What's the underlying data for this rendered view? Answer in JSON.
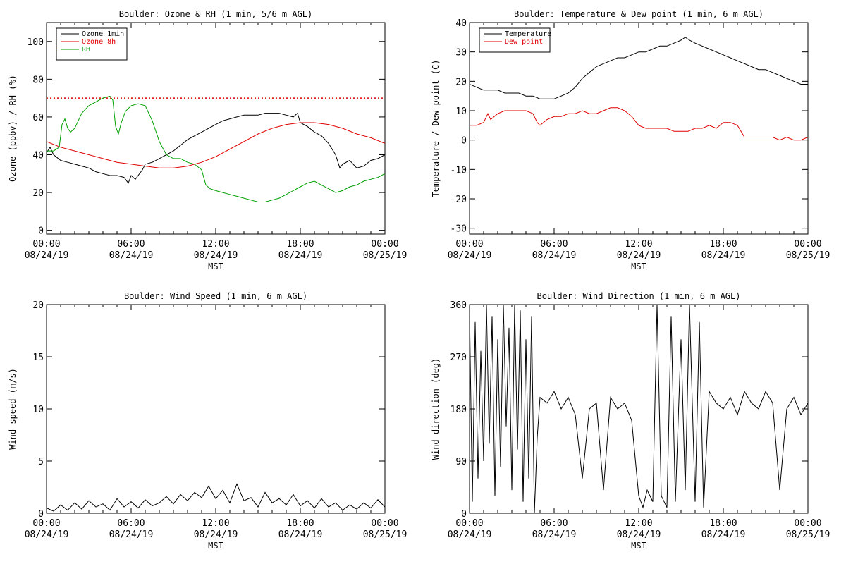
{
  "chart_data": [
    {
      "type": "line",
      "title": "Boulder: Ozone & RH (1 min, 5/6 m AGL)",
      "xlabel": "MST",
      "ylabel": "Ozone (ppbv) / RH (%)",
      "xlim": [
        0,
        24
      ],
      "ylim": [
        -2,
        110
      ],
      "yticks": [
        0,
        20,
        40,
        60,
        80,
        100
      ],
      "xticks": [
        {
          "time": "00:00",
          "date": "08/24/19"
        },
        {
          "time": "06:00",
          "date": "08/24/19"
        },
        {
          "time": "12:00",
          "date": "08/24/19"
        },
        {
          "time": "18:00",
          "date": "08/24/19"
        },
        {
          "time": "00:00",
          "date": "08/25/19"
        }
      ],
      "legend_position": "top-left",
      "reference_line": {
        "y": 70,
        "color": "#e00000",
        "style": "dotted"
      },
      "series": [
        {
          "name": "Ozone 1min",
          "color": "#000000",
          "x": [
            0,
            0.25,
            0.5,
            1,
            1.5,
            2,
            2.5,
            3,
            3.5,
            4,
            4.5,
            5,
            5.5,
            5.8,
            6,
            6.3,
            6.8,
            7,
            7.5,
            8,
            8.5,
            9,
            9.5,
            10,
            10.5,
            11,
            11.5,
            12,
            12.5,
            13,
            13.5,
            14,
            14.5,
            15,
            15.5,
            16,
            16.5,
            17,
            17.5,
            17.8,
            18,
            18.5,
            19,
            19.5,
            20,
            20.5,
            20.8,
            21,
            21.5,
            22,
            22.5,
            23,
            23.5,
            24
          ],
          "y": [
            41,
            44,
            40,
            37,
            36,
            35,
            34,
            33,
            31,
            30,
            29,
            29,
            28,
            25,
            29,
            27,
            32,
            35,
            36,
            38,
            40,
            42,
            45,
            48,
            50,
            52,
            54,
            56,
            58,
            59,
            60,
            61,
            61,
            61,
            62,
            62,
            62,
            61,
            60,
            62,
            57,
            55,
            52,
            50,
            46,
            40,
            33,
            35,
            37,
            33,
            34,
            37,
            38,
            40
          ]
        },
        {
          "name": "Ozone 8h",
          "color": "#e00000",
          "x": [
            0,
            1,
            2,
            3,
            4,
            5,
            6,
            7,
            8,
            9,
            10,
            11,
            12,
            13,
            14,
            15,
            16,
            17,
            18,
            19,
            20,
            21,
            22,
            23,
            24
          ],
          "y": [
            47,
            44,
            42,
            40,
            38,
            36,
            35,
            34,
            33,
            33,
            34,
            36,
            39,
            43,
            47,
            51,
            54,
            56,
            57,
            57,
            56,
            54,
            51,
            49,
            46
          ]
        },
        {
          "name": "RH",
          "color": "#00a000",
          "x": [
            0,
            0.5,
            0.9,
            1.1,
            1.3,
            1.5,
            1.7,
            2,
            2.5,
            3,
            3.5,
            4,
            4.5,
            4.7,
            4.9,
            5.1,
            5.3,
            5.6,
            6,
            6.5,
            7,
            7.5,
            8,
            8.5,
            9,
            9.5,
            10,
            10.5,
            11,
            11.3,
            11.6,
            12,
            12.5,
            13,
            13.5,
            14,
            14.5,
            15,
            15.5,
            16,
            16.5,
            17,
            17.5,
            18,
            18.5,
            19,
            19.5,
            20,
            20.5,
            21,
            21.5,
            22,
            22.5,
            23,
            23.5,
            24
          ],
          "y": [
            42,
            42,
            44,
            56,
            59,
            54,
            52,
            54,
            62,
            66,
            68,
            70,
            71,
            69,
            55,
            51,
            57,
            63,
            66,
            67,
            66,
            58,
            47,
            40,
            38,
            38,
            36,
            35,
            32,
            24,
            22,
            21,
            20,
            19,
            18,
            17,
            16,
            15,
            15,
            16,
            17,
            19,
            21,
            23,
            25,
            26,
            24,
            22,
            20,
            21,
            23,
            24,
            26,
            27,
            28,
            30
          ]
        }
      ]
    },
    {
      "type": "line",
      "title": "Boulder: Temperature & Dew point (1 min, 6 m AGL)",
      "xlabel": "MST",
      "ylabel": "Temperature / Dew point (C)",
      "xlim": [
        0,
        24
      ],
      "ylim": [
        -32,
        40
      ],
      "yticks": [
        -30,
        -20,
        -10,
        0,
        10,
        20,
        30,
        40
      ],
      "xticks": [
        {
          "time": "00:00",
          "date": "08/24/19"
        },
        {
          "time": "06:00",
          "date": "08/24/19"
        },
        {
          "time": "12:00",
          "date": "08/24/19"
        },
        {
          "time": "18:00",
          "date": "08/24/19"
        },
        {
          "time": "00:00",
          "date": "08/25/19"
        }
      ],
      "legend_position": "top-left",
      "series": [
        {
          "name": "Temperature",
          "color": "#000000",
          "x": [
            0,
            0.5,
            1,
            1.5,
            2,
            2.5,
            3,
            3.5,
            4,
            4.5,
            5,
            5.5,
            6,
            6.5,
            7,
            7.5,
            8,
            8.5,
            9,
            9.5,
            10,
            10.5,
            11,
            11.5,
            12,
            12.5,
            13,
            13.5,
            14,
            14.5,
            15,
            15.3,
            15.6,
            16,
            16.5,
            17,
            17.5,
            18,
            18.5,
            19,
            19.5,
            20,
            20.5,
            21,
            21.5,
            22,
            22.5,
            23,
            23.5,
            24
          ],
          "y": [
            19,
            18,
            17,
            17,
            17,
            16,
            16,
            16,
            15,
            15,
            14,
            14,
            14,
            15,
            16,
            18,
            21,
            23,
            25,
            26,
            27,
            28,
            28,
            29,
            30,
            30,
            31,
            32,
            32,
            33,
            34,
            35,
            34,
            33,
            32,
            31,
            30,
            29,
            28,
            27,
            26,
            25,
            24,
            24,
            23,
            22,
            21,
            20,
            19,
            19
          ]
        },
        {
          "name": "Dew point",
          "color": "#e00000",
          "x": [
            0,
            0.5,
            1,
            1.3,
            1.5,
            2,
            2.5,
            3,
            3.5,
            4,
            4.5,
            4.8,
            5,
            5.5,
            6,
            6.5,
            7,
            7.5,
            8,
            8.5,
            9,
            9.5,
            10,
            10.5,
            11,
            11.5,
            12,
            12.5,
            13,
            13.5,
            14,
            14.5,
            15,
            15.5,
            16,
            16.5,
            17,
            17.5,
            18,
            18.5,
            19,
            19.5,
            20,
            20.5,
            21,
            21.5,
            22,
            22.5,
            23,
            23.5,
            24
          ],
          "y": [
            5,
            5,
            6,
            9,
            7,
            9,
            10,
            10,
            10,
            10,
            9,
            6,
            5,
            7,
            8,
            8,
            9,
            9,
            10,
            9,
            9,
            10,
            11,
            11,
            10,
            8,
            5,
            4,
            4,
            4,
            4,
            3,
            3,
            3,
            4,
            4,
            5,
            4,
            6,
            6,
            5,
            1,
            1,
            1,
            1,
            1,
            0,
            1,
            0,
            0,
            1
          ]
        }
      ]
    },
    {
      "type": "line",
      "title": "Boulder: Wind Speed (1 min, 6 m AGL)",
      "xlabel": "MST",
      "ylabel": "Wind speed (m/s)",
      "xlim": [
        0,
        24
      ],
      "ylim": [
        0,
        20
      ],
      "yticks": [
        0,
        5,
        10,
        15,
        20
      ],
      "xticks": [
        {
          "time": "00:00",
          "date": "08/24/19"
        },
        {
          "time": "06:00",
          "date": "08/24/19"
        },
        {
          "time": "12:00",
          "date": "08/24/19"
        },
        {
          "time": "18:00",
          "date": "08/24/19"
        },
        {
          "time": "00:00",
          "date": "08/25/19"
        }
      ],
      "series": [
        {
          "color": "#000000",
          "x": [
            0,
            0.5,
            1,
            1.5,
            2,
            2.5,
            3,
            3.5,
            4,
            4.5,
            5,
            5.5,
            6,
            6.5,
            7,
            7.5,
            8,
            8.5,
            9,
            9.5,
            10,
            10.5,
            11,
            11.5,
            12,
            12.5,
            13,
            13.5,
            14,
            14.5,
            15,
            15.5,
            16,
            16.5,
            17,
            17.5,
            18,
            18.5,
            19,
            19.5,
            20,
            20.5,
            21,
            21.5,
            22,
            22.5,
            23,
            23.5,
            24
          ],
          "y": [
            0.5,
            0.2,
            0.8,
            0.3,
            1.0,
            0.4,
            1.2,
            0.6,
            0.9,
            0.3,
            1.4,
            0.6,
            1.1,
            0.5,
            1.3,
            0.7,
            1.0,
            1.6,
            0.9,
            1.8,
            1.2,
            2.0,
            1.5,
            2.6,
            1.4,
            2.2,
            1.0,
            2.8,
            1.2,
            1.5,
            0.6,
            2.0,
            1.0,
            1.4,
            0.8,
            1.8,
            0.7,
            1.2,
            0.5,
            1.4,
            0.6,
            1.0,
            0.3,
            0.8,
            0.4,
            1.0,
            0.5,
            1.3,
            0.6
          ]
        }
      ]
    },
    {
      "type": "line",
      "title": "Boulder: Wind Direction (1 min, 6 m AGL)",
      "xlabel": "MST",
      "ylabel": "Wind direction (deg)",
      "xlim": [
        0,
        24
      ],
      "ylim": [
        0,
        360
      ],
      "yticks": [
        0,
        90,
        180,
        270,
        360
      ],
      "xticks": [
        {
          "time": "00:00",
          "date": "08/24/19"
        },
        {
          "time": "06:00",
          "date": "08/24/19"
        },
        {
          "time": "12:00",
          "date": "08/24/19"
        },
        {
          "time": "18:00",
          "date": "08/24/19"
        },
        {
          "time": "00:00",
          "date": "08/25/19"
        }
      ],
      "series": [
        {
          "color": "#000000",
          "x": [
            0,
            0.2,
            0.4,
            0.6,
            0.8,
            1,
            1.2,
            1.4,
            1.6,
            1.8,
            2,
            2.2,
            2.4,
            2.6,
            2.8,
            3,
            3.2,
            3.4,
            3.6,
            3.8,
            4,
            4.2,
            4.4,
            4.6,
            4.8,
            5,
            5.5,
            6,
            6.5,
            7,
            7.5,
            8,
            8.5,
            9,
            9.5,
            10,
            10.5,
            11,
            11.5,
            12,
            12.3,
            12.6,
            13,
            13.3,
            13.6,
            14,
            14.3,
            14.6,
            15,
            15.3,
            15.6,
            16,
            16.3,
            16.6,
            17,
            17.5,
            18,
            18.5,
            19,
            19.5,
            20,
            20.5,
            21,
            21.5,
            22,
            22.5,
            23,
            23.5,
            24
          ],
          "y": [
            350,
            20,
            330,
            60,
            280,
            90,
            360,
            120,
            340,
            30,
            300,
            80,
            360,
            150,
            320,
            40,
            360,
            110,
            350,
            20,
            300,
            60,
            340,
            0,
            130,
            200,
            190,
            210,
            180,
            200,
            170,
            60,
            180,
            190,
            40,
            200,
            180,
            190,
            160,
            30,
            10,
            40,
            20,
            360,
            30,
            10,
            340,
            20,
            300,
            40,
            360,
            20,
            330,
            10,
            210,
            190,
            180,
            200,
            170,
            210,
            190,
            180,
            210,
            190,
            40,
            180,
            200,
            170,
            190
          ]
        }
      ]
    }
  ]
}
